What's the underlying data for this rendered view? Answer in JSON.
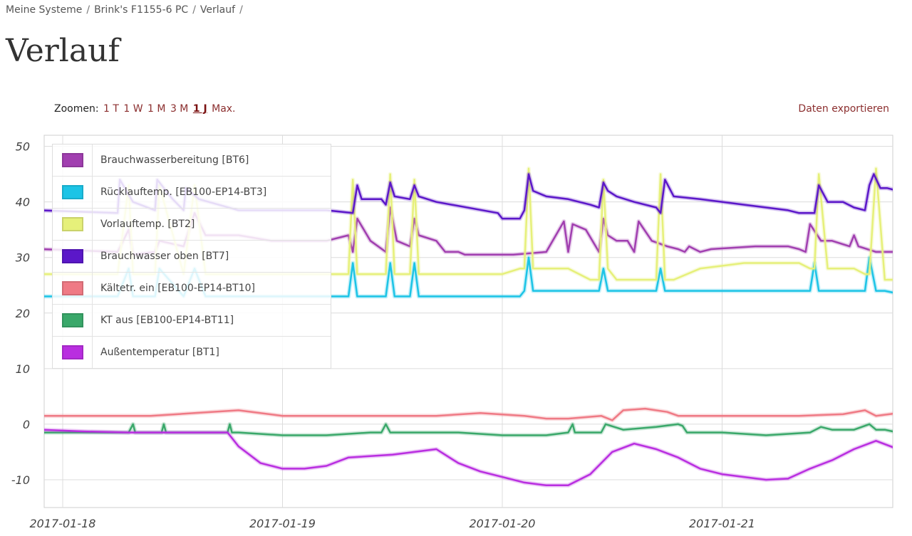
{
  "breadcrumb": {
    "item1": "Meine Systeme",
    "item2": "Brink's F1155-6 PC",
    "item3": "Verlauf",
    "separator": "/"
  },
  "title": "Verlauf",
  "zoom": {
    "label": "Zoomen:",
    "options": [
      "1 T",
      "1 W",
      "1 M",
      "3 M",
      "1 J",
      "Max."
    ],
    "active": "1 J"
  },
  "export_label": "Daten exportieren",
  "chart_data": {
    "type": "line",
    "ylim": [
      -15,
      52
    ],
    "yticks": [
      -10,
      0,
      10,
      20,
      30,
      40,
      50
    ],
    "xlim": [
      0,
      3.8
    ],
    "xticks": [
      {
        "pos": 0,
        "label": "2017-01-18"
      },
      {
        "pos": 1,
        "label": "2017-01-19"
      },
      {
        "pos": 2,
        "label": "2017-01-20"
      },
      {
        "pos": 3,
        "label": "2017-01-21"
      }
    ],
    "grid": true,
    "legend_position": "top-left",
    "series": [
      {
        "name": "Brauchwasserbereitung [BT6]",
        "color": "#a13fb0",
        "x": [
          -0.1,
          0.25,
          0.3,
          0.32,
          0.42,
          0.44,
          0.55,
          0.6,
          0.65,
          0.8,
          0.95,
          1.05,
          1.2,
          1.3,
          1.32,
          1.34,
          1.4,
          1.47,
          1.49,
          1.52,
          1.58,
          1.6,
          1.62,
          1.7,
          1.74,
          1.8,
          1.83,
          1.9,
          2.05,
          2.2,
          2.28,
          2.3,
          2.32,
          2.38,
          2.44,
          2.46,
          2.48,
          2.52,
          2.57,
          2.6,
          2.62,
          2.68,
          2.75,
          2.8,
          2.83,
          2.85,
          2.9,
          2.95,
          3.15,
          3.3,
          3.35,
          3.38,
          3.4,
          3.45,
          3.5,
          3.58,
          3.6,
          3.62,
          3.7,
          3.8
        ],
        "y": [
          31.5,
          31,
          35,
          30.5,
          31,
          33,
          32,
          38,
          34,
          34,
          33,
          33,
          33,
          34,
          31,
          37,
          33,
          31,
          39,
          33,
          32,
          37,
          34,
          33,
          31,
          31,
          30.5,
          30.5,
          30.5,
          31,
          36.5,
          31,
          36,
          35,
          31,
          37,
          34,
          33,
          33,
          31,
          36.5,
          33,
          32,
          31.5,
          31,
          32,
          31,
          31.5,
          32,
          32,
          31.5,
          31,
          36,
          33,
          33,
          32,
          34,
          32,
          31,
          31
        ]
      },
      {
        "name": "Rücklauftemp. [EB100-EP14-BT3]",
        "color": "#1cc4e6",
        "x": [
          -0.1,
          0.25,
          0.3,
          0.32,
          0.42,
          0.44,
          0.55,
          0.6,
          0.65,
          0.8,
          1.2,
          1.3,
          1.32,
          1.34,
          1.45,
          1.47,
          1.49,
          1.51,
          1.58,
          1.6,
          1.62,
          1.7,
          1.98,
          2.0,
          2.08,
          2.1,
          2.12,
          2.14,
          2.4,
          2.44,
          2.46,
          2.48,
          2.6,
          2.7,
          2.72,
          2.74,
          2.9,
          3.15,
          3.3,
          3.35,
          3.4,
          3.42,
          3.44,
          3.48,
          3.6,
          3.65,
          3.67,
          3.7,
          3.74,
          3.8
        ],
        "y": [
          23,
          23,
          28,
          23,
          23,
          28,
          23,
          28,
          23,
          23,
          23,
          23,
          29,
          23,
          23,
          23,
          29,
          23,
          23,
          29,
          23,
          23,
          23,
          23,
          23,
          24,
          30,
          24,
          24,
          24,
          28,
          24,
          24,
          24,
          28,
          24,
          24,
          24,
          24,
          24,
          24,
          29,
          24,
          24,
          24,
          24,
          30,
          24,
          24,
          23.5
        ]
      },
      {
        "name": "Vorlauftemp. [BT2]",
        "color": "#e6f07a",
        "x": [
          -0.1,
          0.25,
          0.3,
          0.32,
          0.42,
          0.44,
          0.55,
          0.6,
          0.65,
          0.8,
          1.2,
          1.3,
          1.32,
          1.34,
          1.45,
          1.47,
          1.49,
          1.51,
          1.58,
          1.6,
          1.62,
          1.7,
          1.98,
          2.0,
          2.08,
          2.1,
          2.12,
          2.14,
          2.2,
          2.3,
          2.4,
          2.44,
          2.46,
          2.48,
          2.52,
          2.56,
          2.6,
          2.7,
          2.72,
          2.74,
          2.78,
          2.9,
          3.1,
          3.3,
          3.35,
          3.4,
          3.42,
          3.44,
          3.48,
          3.6,
          3.65,
          3.67,
          3.7,
          3.74,
          3.8
        ],
        "y": [
          27,
          27,
          43,
          27,
          27,
          43,
          27,
          43,
          27,
          27,
          27,
          27,
          44,
          27,
          27,
          27,
          45,
          27,
          27,
          44,
          27,
          27,
          27,
          27,
          28,
          28,
          46,
          28,
          28,
          28,
          26,
          26,
          44,
          28,
          26,
          26,
          26,
          26,
          45,
          26,
          26,
          28,
          29,
          29,
          29,
          28,
          28,
          45,
          28,
          28,
          27,
          27,
          46,
          26,
          26
        ]
      },
      {
        "name": "Brauchwasser oben [BT7]",
        "color": "#5b17c9",
        "x": [
          -0.1,
          0.25,
          0.26,
          0.32,
          0.42,
          0.43,
          0.5,
          0.55,
          0.56,
          0.62,
          0.8,
          1.0,
          1.2,
          1.32,
          1.34,
          1.36,
          1.45,
          1.47,
          1.49,
          1.51,
          1.58,
          1.6,
          1.62,
          1.7,
          1.98,
          2.0,
          2.08,
          2.1,
          2.12,
          2.14,
          2.2,
          2.3,
          2.4,
          2.44,
          2.46,
          2.48,
          2.52,
          2.6,
          2.7,
          2.72,
          2.74,
          2.78,
          2.9,
          3.1,
          3.3,
          3.35,
          3.38,
          3.42,
          3.44,
          3.48,
          3.55,
          3.6,
          3.65,
          3.67,
          3.69,
          3.72,
          3.75,
          3.8
        ],
        "y": [
          38.5,
          38,
          44,
          40,
          38.5,
          44,
          40.5,
          38.5,
          42.5,
          40.5,
          38.5,
          38.5,
          38.5,
          38,
          43,
          40.5,
          40.5,
          39.5,
          43.5,
          41,
          40.5,
          43,
          41,
          40,
          38,
          37,
          37,
          38.5,
          45,
          42,
          41,
          40.5,
          39.5,
          39,
          43.5,
          42,
          41,
          40,
          39,
          38,
          44,
          41,
          40.5,
          39.5,
          38.5,
          38,
          38,
          38,
          43,
          40,
          40,
          39,
          38.5,
          43,
          45,
          42.5,
          42.5,
          42
        ]
      },
      {
        "name": "Kältetr. ein [EB100-EP14-BT10]",
        "color": "#ef7a85",
        "x": [
          -0.1,
          0.4,
          0.6,
          0.8,
          1.0,
          1.5,
          1.7,
          1.9,
          2.1,
          2.2,
          2.3,
          2.45,
          2.5,
          2.55,
          2.65,
          2.75,
          2.8,
          2.9,
          3.0,
          3.35,
          3.55,
          3.65,
          3.7,
          3.8
        ],
        "y": [
          1.5,
          1.5,
          2,
          2.5,
          1.5,
          1.5,
          1.5,
          2,
          1.5,
          1,
          1,
          1.5,
          0.7,
          2.5,
          2.8,
          2.2,
          1.5,
          1.5,
          1.5,
          1.5,
          1.8,
          2.5,
          1.5,
          2
        ]
      },
      {
        "name": "KT aus [EB100-EP14-BT11]",
        "color": "#3aa86a",
        "x": [
          -0.1,
          0.3,
          0.32,
          0.33,
          0.45,
          0.46,
          0.47,
          0.75,
          0.76,
          0.77,
          0.8,
          1.0,
          1.2,
          1.4,
          1.45,
          1.47,
          1.49,
          1.58,
          1.6,
          1.8,
          2.0,
          2.1,
          2.2,
          2.3,
          2.32,
          2.33,
          2.45,
          2.47,
          2.55,
          2.7,
          2.8,
          2.82,
          2.84,
          3.0,
          3.2,
          3.4,
          3.45,
          3.5,
          3.6,
          3.67,
          3.7,
          3.74,
          3.8
        ],
        "y": [
          -1.5,
          -1.5,
          0,
          -1.5,
          -1.5,
          0,
          -1.5,
          -1.5,
          0,
          -1.5,
          -1.5,
          -2,
          -2,
          -1.5,
          -1.5,
          0,
          -1.5,
          -1.5,
          -1.5,
          -1.5,
          -2,
          -2,
          -2,
          -1.5,
          0,
          -1.5,
          -1.5,
          0,
          -1,
          -0.5,
          0,
          -0.3,
          -1.5,
          -1.5,
          -2,
          -1.5,
          -0.5,
          -1,
          -1,
          0,
          -1,
          -1,
          -1.5
        ]
      },
      {
        "name": "Außentemperatur [BT1]",
        "color": "#b92ee0",
        "x": [
          -0.1,
          0.1,
          0.3,
          0.4,
          0.6,
          0.75,
          0.8,
          0.9,
          1.0,
          1.1,
          1.2,
          1.3,
          1.5,
          1.6,
          1.7,
          1.8,
          1.9,
          2.0,
          2.1,
          2.2,
          2.3,
          2.4,
          2.5,
          2.6,
          2.7,
          2.8,
          2.9,
          3.0,
          3.1,
          3.2,
          3.3,
          3.4,
          3.5,
          3.6,
          3.7,
          3.8
        ],
        "y": [
          -1,
          -1.3,
          -1.5,
          -1.5,
          -1.5,
          -1.5,
          -4,
          -7,
          -8,
          -8,
          -7.5,
          -6,
          -5.5,
          -5,
          -4.5,
          -7,
          -8.5,
          -9.5,
          -10.5,
          -11,
          -11,
          -9,
          -5,
          -3.5,
          -4.5,
          -6,
          -8,
          -9,
          -9.5,
          -10,
          -9.8,
          -8,
          -6.5,
          -4.5,
          -3,
          -4.5
        ]
      }
    ]
  }
}
